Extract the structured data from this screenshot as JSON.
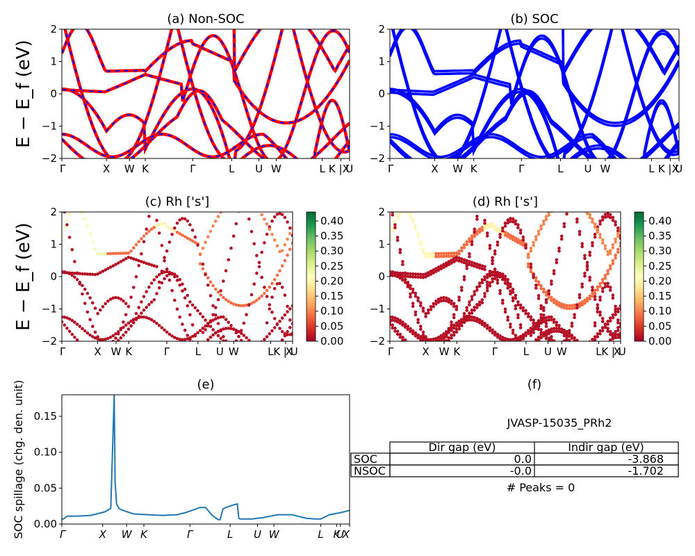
{
  "chart_data": [
    {
      "type": "line",
      "title": "(a) Non-SOC",
      "ylabel": "E − E_f (eV)",
      "ylim": [
        -2,
        2
      ],
      "yticks": [
        2,
        1,
        0,
        -1,
        -2
      ],
      "xtick_labels": [
        "Γ",
        "X",
        "W",
        "K",
        "Γ",
        "L",
        "U",
        "W",
        "L",
        "K | U",
        "X"
      ],
      "colors": {
        "primary": "#ff0000",
        "dashed": "#0000ff"
      }
    },
    {
      "type": "line",
      "title": "(b) SOC",
      "ylim": [
        -2,
        2
      ],
      "yticks": [
        2,
        1,
        0,
        -1,
        -2
      ],
      "xtick_labels": [
        "Γ",
        "X",
        "W",
        "K",
        "Γ",
        "L",
        "U",
        "W",
        "L",
        "K | U",
        "X"
      ],
      "colors": {
        "primary": "#0000ff"
      }
    },
    {
      "type": "scatter",
      "title": "(c)  Rh ['s']",
      "ylabel": "E − E_f (eV)",
      "ylim": [
        -2,
        2
      ],
      "yticks": [
        2,
        1,
        0,
        -1,
        -2
      ],
      "xtick_labels": [
        "Γ",
        "X",
        "W",
        "K",
        "Γ",
        "L",
        "U",
        "W",
        "L",
        "K | U",
        "X"
      ],
      "colorbar": {
        "ticks": [
          "0.40",
          "0.35",
          "0.30",
          "0.25",
          "0.20",
          "0.15",
          "0.10",
          "0.05",
          "0.00"
        ],
        "range": [
          0,
          0.43
        ],
        "colormap": "RdYlGn"
      }
    },
    {
      "type": "scatter",
      "title": "(d) Rh ['s']",
      "ylim": [
        -2,
        2
      ],
      "yticks": [
        2,
        1,
        0,
        -1,
        -2
      ],
      "xtick_labels": [
        "Γ",
        "X",
        "W",
        "K",
        "Γ",
        "L",
        "U",
        "W",
        "L",
        "K | U",
        "X"
      ],
      "colorbar": {
        "ticks": [
          "0.40",
          "0.35",
          "0.30",
          "0.25",
          "0.20",
          "0.15",
          "0.10",
          "0.05",
          "0.00"
        ],
        "range": [
          0,
          0.43
        ],
        "colormap": "RdYlGn"
      }
    },
    {
      "type": "line",
      "title": "(e)",
      "ylabel": "SOC spillage (chg. den. unit)",
      "ylim": [
        0,
        0.18
      ],
      "yticks": [
        "0.15",
        "0.10",
        "0.05",
        "0.00"
      ],
      "xtick_labels": [
        "Γ",
        "X",
        "W",
        "K",
        "Γ",
        "L",
        "U",
        "W",
        "L",
        "K",
        "U",
        "X"
      ],
      "series": [
        {
          "x": [
            0,
            0.02,
            0.05,
            0.1,
            0.15,
            0.17,
            0.182,
            0.185,
            0.19,
            0.2,
            0.22,
            0.25,
            0.3,
            0.35,
            0.4,
            0.43,
            0.46,
            0.48,
            0.5,
            0.52,
            0.54,
            0.545,
            0.55,
            0.56,
            0.57,
            0.6,
            0.61,
            0.615,
            0.62,
            0.66,
            0.7,
            0.75,
            0.8,
            0.85,
            0.88,
            0.9,
            0.93,
            0.97,
            1.0
          ],
          "values": [
            0.006,
            0.011,
            0.011,
            0.012,
            0.017,
            0.022,
            0.18,
            0.06,
            0.028,
            0.021,
            0.018,
            0.014,
            0.013,
            0.012,
            0.013,
            0.016,
            0.02,
            0.023,
            0.023,
            0.013,
            0.007,
            0.006,
            0.006,
            0.021,
            0.023,
            0.027,
            0.028,
            0.008,
            0.007,
            0.007,
            0.009,
            0.013,
            0.013,
            0.008,
            0.007,
            0.007,
            0.013,
            0.016,
            0.019
          ]
        }
      ],
      "colors": {
        "line": "#1f77b4"
      }
    },
    {
      "type": "table",
      "title": "(f)",
      "caption": "JVASP-15035_PRh2",
      "columns": [
        "Dir gap (eV)",
        "Indir gap (eV)"
      ],
      "rows": [
        {
          "label": "SOC",
          "values": [
            "0.0",
            "-3.868"
          ]
        },
        {
          "label": "NSOC",
          "values": [
            "-0.0",
            "-1.702"
          ]
        }
      ],
      "footer": "# Peaks = 0"
    }
  ]
}
